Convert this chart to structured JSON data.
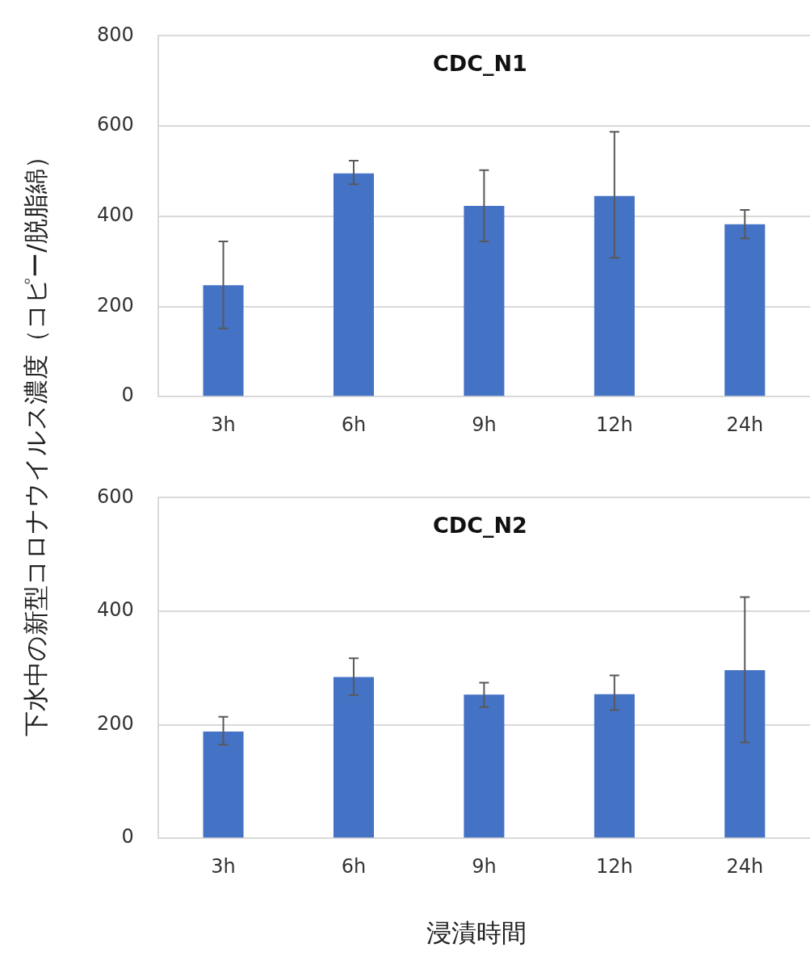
{
  "chart_data": [
    {
      "type": "bar",
      "title": "CDC_N1",
      "ylabel": "下水中の新型コロナウイルス濃度（コピー/脱脂綿）",
      "categories": [
        "3h",
        "6h",
        "9h",
        "12h",
        "24h"
      ],
      "values": [
        247,
        495,
        423,
        445,
        382
      ],
      "errors": [
        [
          151,
          344
        ],
        [
          471,
          523
        ],
        [
          344,
          502
        ],
        [
          308,
          587
        ],
        [
          351,
          414
        ]
      ],
      "color": "#4472c4",
      "ylim": [
        0,
        800
      ],
      "yticks": [
        0,
        200,
        400,
        600,
        800
      ],
      "grid": "y"
    },
    {
      "type": "bar",
      "title": "CDC_N2",
      "xlabel": "浸漬時間",
      "categories": [
        "3h",
        "6h",
        "9h",
        "12h",
        "24h"
      ],
      "values": [
        188,
        284,
        253,
        254,
        296
      ],
      "errors": [
        [
          165,
          214
        ],
        [
          252,
          317
        ],
        [
          231,
          274
        ],
        [
          226,
          287
        ],
        [
          169,
          425
        ]
      ],
      "color": "#4472c4",
      "ylim": [
        0,
        600
      ],
      "yticks": [
        0,
        200,
        400,
        600
      ],
      "grid": "y"
    }
  ]
}
